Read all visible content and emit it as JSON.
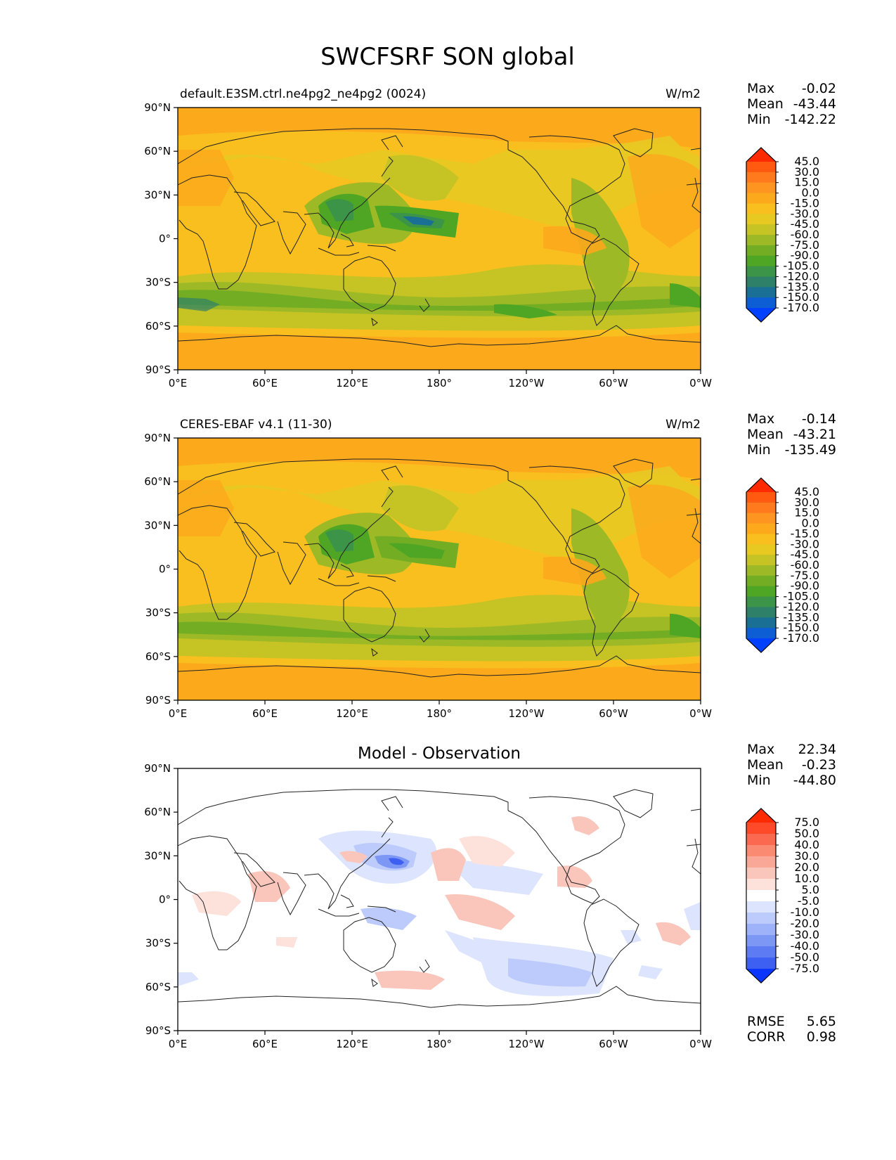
{
  "title": "SWCFSRF SON global",
  "lon_ticks": [
    "0°E",
    "60°E",
    "120°E",
    "180°",
    "120°W",
    "60°W",
    "0°W"
  ],
  "lat_ticks": [
    "90°N",
    "60°N",
    "30°N",
    "0°",
    "30°S",
    "60°S",
    "90°S"
  ],
  "panels": [
    {
      "id": "model",
      "title_left": "default.E3SM.ctrl.ne4pg2_ne4pg2 (0024)",
      "title_center": "",
      "units": "W/m2",
      "stats": [
        {
          "label": "Max",
          "value": "-0.02"
        },
        {
          "label": "Mean",
          "value": "-43.44"
        },
        {
          "label": "Min",
          "value": "-142.22"
        }
      ],
      "colorbar": {
        "labels": [
          "45.0",
          "30.0",
          "15.0",
          "0.0",
          "-15.0",
          "-30.0",
          "-45.0",
          "-60.0",
          "-75.0",
          "-90.0",
          "-105.0",
          "-120.0",
          "-135.0",
          "-150.0",
          "-170.0"
        ],
        "colors": [
          "#ff2a00",
          "#ff5a10",
          "#ff7a1c",
          "#fd9520",
          "#fca91c",
          "#f9bf1e",
          "#e7c922",
          "#c6c324",
          "#9dba26",
          "#72ad24",
          "#4ea624",
          "#3b9448",
          "#2f8068",
          "#1a7094",
          "#0d5ed4",
          "#0040ff"
        ]
      }
    },
    {
      "id": "obs",
      "title_left": "CERES-EBAF v4.1 (11-30)",
      "title_center": "",
      "units": "W/m2",
      "stats": [
        {
          "label": "Max",
          "value": "-0.14"
        },
        {
          "label": "Mean",
          "value": "-43.21"
        },
        {
          "label": "Min",
          "value": "-135.49"
        }
      ],
      "colorbar": {
        "labels": [
          "45.0",
          "30.0",
          "15.0",
          "0.0",
          "-15.0",
          "-30.0",
          "-45.0",
          "-60.0",
          "-75.0",
          "-90.0",
          "-105.0",
          "-120.0",
          "-135.0",
          "-150.0",
          "-170.0"
        ],
        "colors": [
          "#ff2a00",
          "#ff5a10",
          "#ff7a1c",
          "#fd9520",
          "#fca91c",
          "#f9bf1e",
          "#e7c922",
          "#c6c324",
          "#9dba26",
          "#72ad24",
          "#4ea624",
          "#3b9448",
          "#2f8068",
          "#1a7094",
          "#0d5ed4",
          "#0040ff"
        ]
      }
    },
    {
      "id": "diff",
      "title_left": "",
      "title_center": "Model - Observation",
      "units": "",
      "stats": [
        {
          "label": "Max",
          "value": "22.34"
        },
        {
          "label": "Mean",
          "value": "-0.23"
        },
        {
          "label": "Min",
          "value": "-44.80"
        }
      ],
      "extra_stats": [
        {
          "label": "RMSE",
          "value": "5.65"
        },
        {
          "label": "CORR",
          "value": "0.98"
        }
      ],
      "colorbar": {
        "labels": [
          "75.0",
          "50.0",
          "40.0",
          "30.0",
          "20.0",
          "10.0",
          "5.0",
          "-5.0",
          "-10.0",
          "-20.0",
          "-30.0",
          "-40.0",
          "-50.0",
          "-75.0"
        ],
        "colors": [
          "#ff2a00",
          "#ff4a2a",
          "#fb6a50",
          "#fa8a72",
          "#f9a898",
          "#fac6bc",
          "#fde2dc",
          "#ffffff",
          "#dde4fd",
          "#bccbfb",
          "#9db2f8",
          "#7d97f5",
          "#5d7cf3",
          "#3d60f2",
          "#0a36ff"
        ]
      }
    }
  ]
}
